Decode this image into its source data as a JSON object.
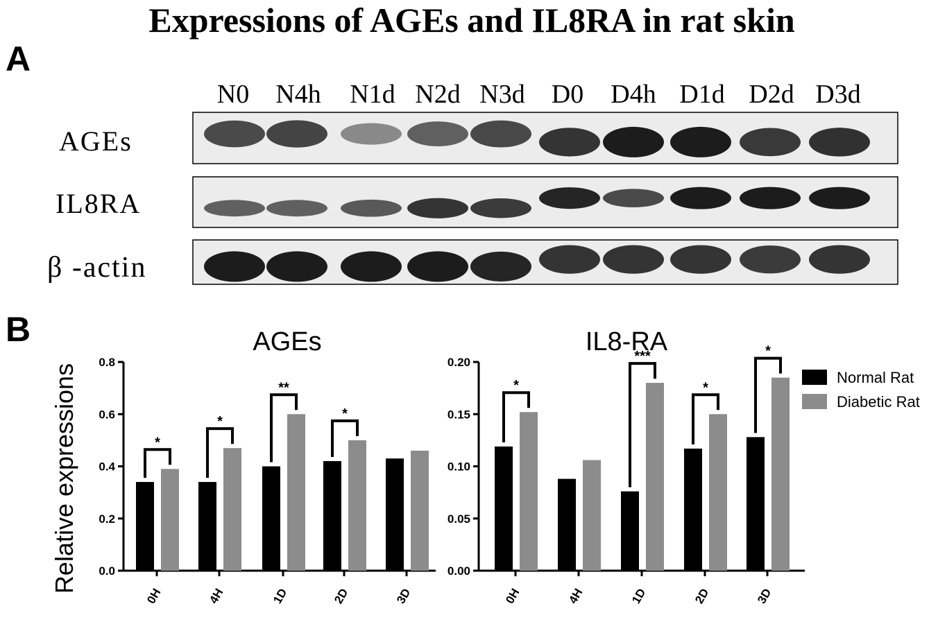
{
  "title": "Expressions of AGEs and IL8RA in rat skin",
  "panel_a_label": "A",
  "panel_b_label": "B",
  "blot": {
    "lanes": [
      "N0",
      "N4h",
      "N1d",
      "N2d",
      "N3d",
      "D0",
      "D4h",
      "D1d",
      "D2d",
      "D3d"
    ],
    "rows": [
      {
        "label": "AGEs",
        "intensity": [
          0.7,
          0.74,
          0.28,
          0.55,
          0.72,
          0.85,
          1.0,
          1.0,
          0.82,
          0.86
        ]
      },
      {
        "label": "IL8RA",
        "intensity": [
          0.55,
          0.55,
          0.6,
          0.85,
          0.8,
          0.95,
          0.7,
          1.0,
          1.0,
          1.0
        ]
      },
      {
        "label": "β -actin",
        "intensity": [
          1.0,
          1.0,
          1.0,
          1.0,
          0.95,
          0.85,
          0.85,
          0.85,
          0.8,
          0.85
        ]
      }
    ]
  },
  "ylabel": "Relative expressions",
  "legend": {
    "position": "right",
    "items": [
      {
        "name": "Normal Rat",
        "color": "#000000"
      },
      {
        "name": "Diabetic Rat",
        "color": "#8c8c8c"
      }
    ]
  },
  "chart_data": [
    {
      "type": "bar",
      "title": "AGEs",
      "categories": [
        "0H",
        "4H",
        "1D",
        "2D",
        "3D"
      ],
      "ylim": [
        0,
        0.8
      ],
      "yticks": [
        "0.0",
        "0.2",
        "0.4",
        "0.6",
        "0.8"
      ],
      "ytick_values": [
        0,
        0.2,
        0.4,
        0.6,
        0.8
      ],
      "series": [
        {
          "name": "Normal Rat",
          "values": [
            0.34,
            0.34,
            0.4,
            0.42,
            0.43
          ]
        },
        {
          "name": "Diabetic Rat",
          "values": [
            0.39,
            0.47,
            0.6,
            0.5,
            0.46
          ]
        }
      ],
      "significance": [
        "*",
        "*",
        "**",
        "*",
        ""
      ]
    },
    {
      "type": "bar",
      "title": "IL8-RA",
      "categories": [
        "0H",
        "4H",
        "1D",
        "2D",
        "3D"
      ],
      "ylim": [
        0,
        0.2
      ],
      "yticks": [
        "0.00",
        "0.05",
        "0.10",
        "0.15",
        "0.20"
      ],
      "ytick_values": [
        0,
        0.05,
        0.1,
        0.15,
        0.2
      ],
      "series": [
        {
          "name": "Normal Rat",
          "values": [
            0.119,
            0.088,
            0.076,
            0.117,
            0.128
          ]
        },
        {
          "name": "Diabetic Rat",
          "values": [
            0.152,
            0.106,
            0.18,
            0.15,
            0.185
          ]
        }
      ],
      "significance": [
        "*",
        "",
        "***",
        "*",
        "*"
      ]
    }
  ]
}
